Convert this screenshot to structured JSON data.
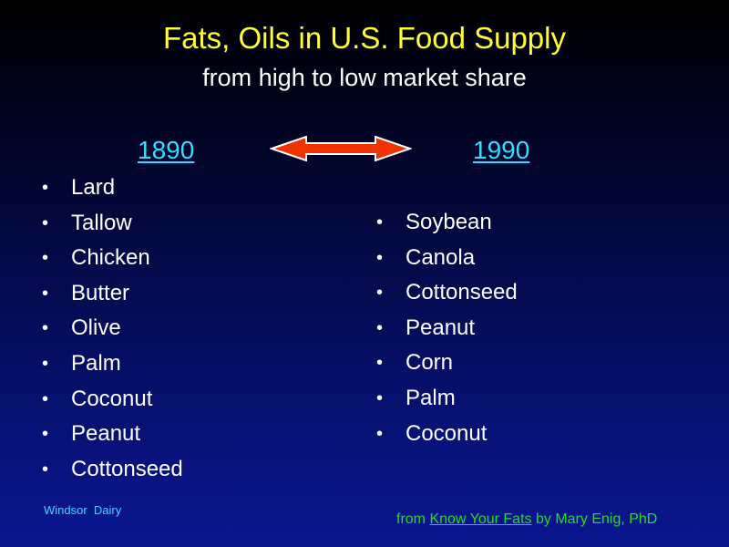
{
  "slide": {
    "title": "Fats, Oils in U.S. Food Supply",
    "subtitle": "from high to low market share"
  },
  "columns": {
    "left": {
      "year": "1890",
      "items": [
        "Lard",
        "Tallow",
        "Chicken",
        "Butter",
        "Olive",
        "Palm",
        "Coconut",
        "Peanut",
        "Cottonseed"
      ]
    },
    "right": {
      "year": "1990",
      "items": [
        "Soybean",
        "Canola",
        "Cottonseed",
        "Peanut",
        "Corn",
        "Palm",
        "Coconut"
      ]
    }
  },
  "bullet": "•",
  "footer": {
    "left": "Windsor  Dairy",
    "source_prefix": "from ",
    "source_link": "Know Your Fats",
    "source_suffix": " by Mary Enig, PhD"
  },
  "colors": {
    "title": "#ffff33",
    "year_link": "#33ddff",
    "arrow_fill": "#ee3300",
    "footer_source": "#22dd22"
  },
  "icons": {
    "double_arrow": "double-headed-arrow-icon"
  }
}
